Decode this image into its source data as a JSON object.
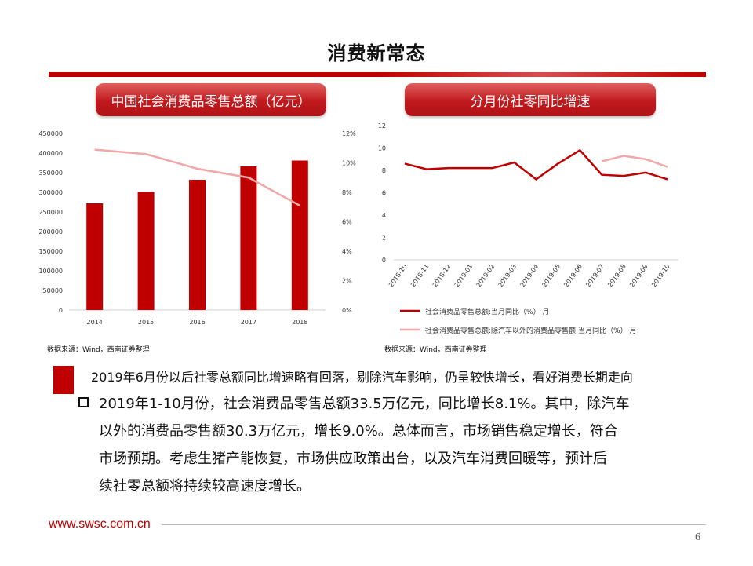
{
  "title": "消费新常态",
  "left_panel": {
    "title": "中国社会消费品零售总额（亿元）",
    "source": "数据来源：Wind，西南证券整理"
  },
  "right_panel": {
    "title": "分月份社零同比增速",
    "source": "数据来源：Wind，西南证券整理"
  },
  "heading": "2019年6月份以后社零总额同比增速略有回落，剔除汽车影响，仍呈较快增长，看好消费长期走向",
  "paragraph": {
    "line1": "2019年1-10月份，社会消费品零售总额33.5万亿元，同比增长8.1%。其中，除汽车",
    "line2": "以外的消费品零售额30.3万亿元，增长9.0%。总体而言，市场销售稳定增长，符合",
    "line3": "市场预期。考虑生猪产能恢复，市场供应政策出台，以及汽车消费回暖等，预计后",
    "line4": "续社零总额将持续较高速度增长。"
  },
  "footer": {
    "website": "www.swsc.com.cn",
    "page_number": "6"
  },
  "colors": {
    "accent": "#c00000",
    "bar": "#c00000",
    "line_light": "#f0a8a8"
  },
  "chart_data": [
    {
      "type": "bar",
      "categories": [
        "2014",
        "2015",
        "2016",
        "2017",
        "2018"
      ],
      "series": [
        {
          "values": [
            272000,
            301000,
            332000,
            366000,
            381000
          ],
          "axis": "left"
        },
        {
          "values": [
            10.9,
            10.6,
            9.6,
            9.0,
            7.1
          ],
          "axis": "right",
          "type": "line"
        }
      ],
      "yticks_left": [
        "0",
        "50000",
        "100000",
        "150000",
        "200000",
        "250000",
        "300000",
        "350000",
        "400000",
        "450000"
      ],
      "yticks_right": [
        "0%",
        "2%",
        "4%",
        "6%",
        "8%",
        "10%",
        "12%"
      ],
      "ylim_left": [
        0,
        450000
      ],
      "ylim_right": [
        0,
        12
      ]
    },
    {
      "type": "line",
      "categories": [
        "2018-10",
        "2018-11",
        "2018-12",
        "2019-01",
        "2019-02",
        "2019-03",
        "2019-04",
        "2019-05",
        "2019-06",
        "2019-07",
        "2019-08",
        "2019-09",
        "2019-10"
      ],
      "series": [
        {
          "name": "社会消费品零售总额:当月同比（%）  月",
          "values": [
            8.6,
            8.1,
            8.2,
            8.2,
            8.2,
            8.7,
            7.2,
            8.6,
            9.8,
            7.6,
            7.5,
            7.8,
            7.2
          ]
        },
        {
          "name": "社会消费品零售总额:除汽车以外的消费品零售额:当月同比（%）  月",
          "values": [
            null,
            null,
            null,
            null,
            null,
            null,
            null,
            null,
            null,
            8.8,
            9.3,
            9.0,
            8.3
          ]
        }
      ],
      "yticks": [
        "0",
        "2",
        "4",
        "6",
        "8",
        "10",
        "12"
      ],
      "ylim": [
        0,
        12
      ]
    }
  ]
}
